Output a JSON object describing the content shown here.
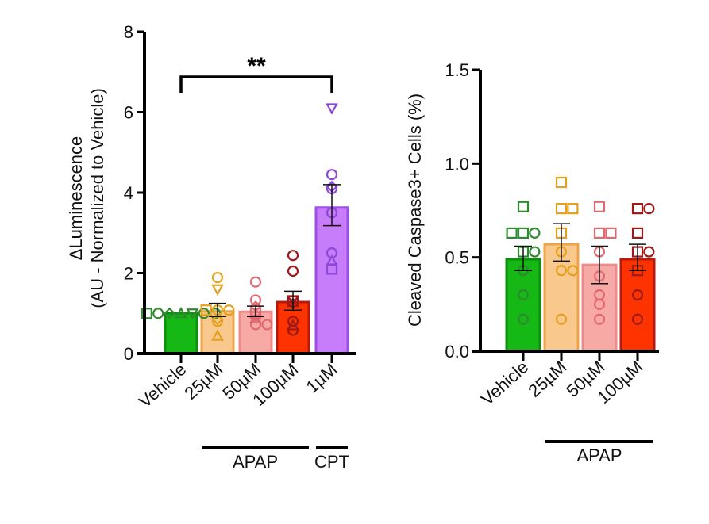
{
  "chart_data": [
    {
      "type": "bar",
      "ylabel": [
        "ΔLuminescence",
        "(AU - Normalized to Vehicle)"
      ],
      "ylim": [
        0,
        8
      ],
      "yticks": [
        "0",
        "2",
        "4",
        "6",
        "8"
      ],
      "categories": [
        "Vehicle",
        "25µM",
        "50µM",
        "100µM",
        "1µM"
      ],
      "groups": [
        {
          "label": "APAP",
          "from": 1,
          "to": 3
        },
        {
          "label": "CPT",
          "from": 4,
          "to": 4
        }
      ],
      "significance": {
        "label": "**",
        "from": 0,
        "to": 4
      },
      "colors": {
        "fill": [
          "#16b816",
          "#f9c88c",
          "#f7a9a6",
          "#ff3300",
          "#c77cfa"
        ],
        "edge": [
          "#0e8f0e",
          "#eea54a",
          "#ee8a8a",
          "#b51a10",
          "#9c4ee6"
        ],
        "dot": [
          "#2f8a2f",
          "#e4a020",
          "#e06a72",
          "#9e1a1a",
          "#8c48d8"
        ]
      },
      "values": [
        1.0,
        1.05,
        1.04,
        1.28,
        3.63
      ],
      "sem_low": [
        1.0,
        0.92,
        0.92,
        1.08,
        3.18
      ],
      "sem_high": [
        1.0,
        1.25,
        1.18,
        1.55,
        4.2
      ],
      "points": [
        [
          [
            1.0,
            "triangle"
          ],
          [
            1.0,
            "invtriangle"
          ],
          [
            1.0,
            "diamond"
          ],
          [
            1.0,
            "circle"
          ],
          [
            1.0,
            "circle"
          ],
          [
            1.0,
            "circle"
          ],
          [
            1.0,
            "square"
          ]
        ],
        [
          [
            1.89,
            "circle"
          ],
          [
            1.6,
            "invtriangle"
          ],
          [
            1.08,
            "circle"
          ],
          [
            1.08,
            "circle"
          ],
          [
            1.08,
            "square"
          ],
          [
            0.85,
            "diamond"
          ],
          [
            0.8,
            "circle"
          ],
          [
            0.44,
            "triangle"
          ]
        ],
        [
          [
            1.78,
            "circle"
          ],
          [
            1.33,
            "circle"
          ],
          [
            1.17,
            "diamond"
          ],
          [
            1.0,
            "square"
          ],
          [
            0.93,
            "invtriangle"
          ],
          [
            0.88,
            "triangle"
          ],
          [
            0.72,
            "circle"
          ],
          [
            0.72,
            "circle"
          ]
        ],
        [
          [
            2.44,
            "circle"
          ],
          [
            2.05,
            "circle"
          ],
          [
            1.33,
            "invtriangle"
          ],
          [
            1.3,
            "square"
          ],
          [
            1.24,
            "diamond"
          ],
          [
            0.8,
            "circle"
          ],
          [
            0.58,
            "circle"
          ],
          [
            0.7,
            "triangle"
          ]
        ],
        [
          [
            6.1,
            "invtriangle"
          ],
          [
            4.45,
            "circle"
          ],
          [
            4.1,
            "circle"
          ],
          [
            4.15,
            "diamond"
          ],
          [
            3.5,
            "circle"
          ],
          [
            2.5,
            "circle"
          ],
          [
            2.3,
            "triangle"
          ],
          [
            2.1,
            "square"
          ]
        ]
      ]
    },
    {
      "type": "bar",
      "ylabel": "Cleaved Caspase3+ Cells (%)",
      "ylim": [
        0,
        1.5
      ],
      "yticks": [
        "0.0",
        "0.5",
        "1.0",
        "1.5"
      ],
      "categories": [
        "Vehicle",
        "25µM",
        "50µM",
        "100µM"
      ],
      "groups": [
        {
          "label": "APAP",
          "from": 1,
          "to": 3
        }
      ],
      "colors": {
        "fill": [
          "#16b816",
          "#f9c88c",
          "#f7a9a6",
          "#ff3300"
        ],
        "edge": [
          "#0e8f0e",
          "#eea54a",
          "#ee8a8a",
          "#b51a10"
        ],
        "dot": [
          "#2f8a2f",
          "#e4a020",
          "#e06a72",
          "#9e1a1a"
        ]
      },
      "values": [
        0.49,
        0.57,
        0.46,
        0.49
      ],
      "sem_low": [
        0.43,
        0.48,
        0.36,
        0.43
      ],
      "sem_high": [
        0.56,
        0.68,
        0.56,
        0.57
      ],
      "points": [
        [
          [
            0.77,
            "square"
          ],
          [
            0.63,
            "square"
          ],
          [
            0.63,
            "circle"
          ],
          [
            0.63,
            "square"
          ],
          [
            0.53,
            "square"
          ],
          [
            0.53,
            "circle"
          ],
          [
            0.43,
            "circle"
          ],
          [
            0.3,
            "circle"
          ],
          [
            0.17,
            "circle"
          ]
        ],
        [
          [
            0.9,
            "square"
          ],
          [
            0.76,
            "square"
          ],
          [
            0.76,
            "square"
          ],
          [
            0.63,
            "square"
          ],
          [
            0.53,
            "circle"
          ],
          [
            0.43,
            "circle"
          ],
          [
            0.43,
            "circle"
          ],
          [
            0.17,
            "circle"
          ]
        ],
        [
          [
            0.77,
            "square"
          ],
          [
            0.63,
            "square"
          ],
          [
            0.63,
            "square"
          ],
          [
            0.53,
            "circle"
          ],
          [
            0.4,
            "circle"
          ],
          [
            0.3,
            "circle"
          ],
          [
            0.25,
            "circle"
          ],
          [
            0.17,
            "circle"
          ]
        ],
        [
          [
            0.76,
            "square"
          ],
          [
            0.76,
            "circle"
          ],
          [
            0.63,
            "square"
          ],
          [
            0.53,
            "square"
          ],
          [
            0.53,
            "circle"
          ],
          [
            0.43,
            "square"
          ],
          [
            0.3,
            "circle"
          ],
          [
            0.17,
            "circle"
          ]
        ]
      ]
    }
  ]
}
